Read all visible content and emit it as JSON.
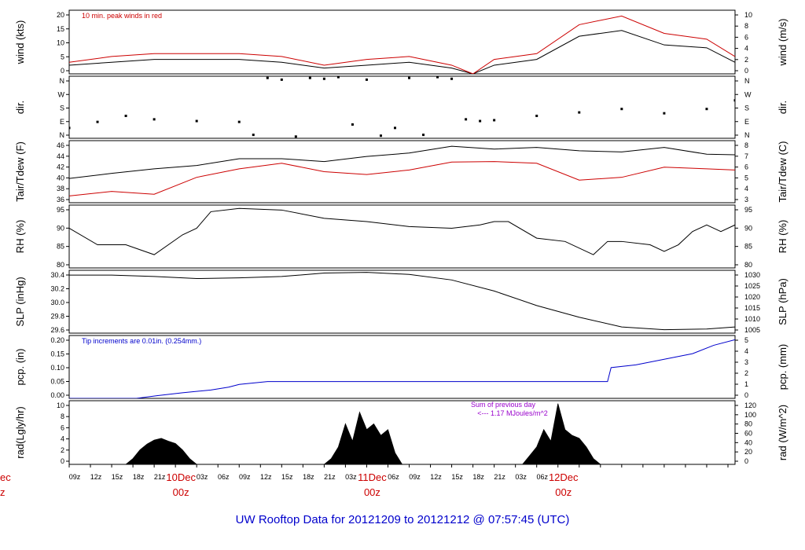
{
  "footer_title": "UW Rooftop Data for 20121209  to  20121212 @ 07:57:45  (UTC)",
  "colors": {
    "black": "#000000",
    "red": "#cc0000",
    "blue": "#0000cc",
    "purple": "#9900cc"
  },
  "x_axis": {
    "hour_labels": [
      "09z",
      "12z",
      "15z",
      "18z",
      "21z",
      "03z",
      "06z",
      "09z",
      "12z",
      "15z",
      "18z",
      "21z",
      "03z",
      "06z",
      "09z",
      "12z",
      "15z",
      "18z",
      "21z",
      "03z",
      "06z"
    ],
    "day_labels": [
      {
        "day": "10Dec",
        "hour": "00z"
      },
      {
        "day": "11Dec",
        "hour": "00z"
      },
      {
        "day": "12Dec",
        "hour": "00z"
      }
    ],
    "cut_off_left": {
      "day": "ec",
      "hour": "z"
    }
  },
  "chart_data": [
    {
      "type": "line",
      "name": "wind",
      "ylabel_left": "wind (kts)",
      "ylabel_right": "wind (m/s)",
      "left_ticks": [
        "0",
        "5",
        "10",
        "15",
        "20"
      ],
      "right_ticks": [
        "0",
        "2",
        "4",
        "6",
        "8",
        "10"
      ],
      "ylim": [
        0,
        22
      ],
      "annotation": "10 min. peak winds in red",
      "series": [
        {
          "name": "mean wind (kts)",
          "color": "#000000",
          "x": [
            0,
            6,
            12,
            18,
            24,
            30,
            36,
            42,
            48,
            54,
            57,
            60,
            66,
            72,
            78,
            84,
            90,
            94
          ],
          "y": [
            3,
            4,
            5,
            5,
            5,
            4,
            2,
            3,
            4,
            2,
            0,
            3,
            5,
            13,
            15,
            10,
            9,
            4
          ]
        },
        {
          "name": "10 min. peak winds",
          "color": "#cc0000",
          "x": [
            0,
            6,
            12,
            18,
            24,
            30,
            36,
            42,
            48,
            54,
            57,
            60,
            66,
            72,
            78,
            84,
            90,
            94
          ],
          "y": [
            4,
            6,
            7,
            7,
            7,
            6,
            3,
            5,
            6,
            3,
            0,
            5,
            7,
            17,
            20,
            14,
            12,
            6
          ]
        }
      ]
    },
    {
      "type": "scatter",
      "name": "dir",
      "ylabel_left": "dir.",
      "ylabel_right": "dir.",
      "left_ticks": [
        "N",
        "E",
        "S",
        "W",
        "N"
      ],
      "right_ticks": [
        "N",
        "E",
        "S",
        "W",
        "N"
      ],
      "ylim": [
        0,
        360
      ],
      "series": [
        {
          "name": "wind direction (deg)",
          "color": "#000000",
          "x": [
            0,
            4,
            8,
            12,
            18,
            24,
            26,
            28,
            30,
            32,
            34,
            36,
            38,
            40,
            42,
            44,
            46,
            48,
            50,
            52,
            54,
            56,
            58,
            60,
            66,
            72,
            78,
            84,
            90,
            94
          ],
          "y": [
            60,
            95,
            130,
            110,
            100,
            95,
            20,
            350,
            340,
            10,
            350,
            345,
            355,
            80,
            340,
            15,
            60,
            350,
            20,
            355,
            345,
            110,
            100,
            105,
            130,
            150,
            170,
            145,
            170,
            220
          ]
        }
      ]
    },
    {
      "type": "line",
      "name": "temperature",
      "ylabel_left": "Tair/Tdew (F)",
      "ylabel_right": "Tair/Tdew (C)",
      "left_ticks": [
        "36",
        "38",
        "40",
        "42",
        "44",
        "46"
      ],
      "right_ticks": [
        "3",
        "4",
        "5",
        "6",
        "7",
        "8"
      ],
      "ylim": [
        36,
        47
      ],
      "series": [
        {
          "name": "Tair (F)",
          "color": "#000000",
          "x": [
            0,
            6,
            12,
            18,
            24,
            30,
            36,
            42,
            48,
            54,
            60,
            66,
            72,
            78,
            84,
            90,
            94
          ],
          "y": [
            40.3,
            41.2,
            42,
            42.6,
            43.8,
            43.8,
            43.3,
            44.2,
            44.8,
            46,
            45.5,
            45.8,
            45.2,
            45,
            45.8,
            44.6,
            44.5
          ]
        },
        {
          "name": "Tdew (F)",
          "color": "#cc0000",
          "x": [
            0,
            6,
            12,
            18,
            24,
            30,
            36,
            42,
            48,
            54,
            60,
            66,
            72,
            78,
            84,
            90,
            94
          ],
          "y": [
            37.2,
            38,
            37.5,
            40.5,
            42,
            43,
            41.5,
            41,
            41.8,
            43.2,
            43.3,
            43,
            40,
            40.5,
            42.3,
            42,
            41.8
          ]
        }
      ]
    },
    {
      "type": "line",
      "name": "rh",
      "ylabel_left": "RH (%)",
      "ylabel_right": "RH (%)",
      "left_ticks": [
        "80",
        "85",
        "90",
        "95"
      ],
      "right_ticks": [
        "80",
        "85",
        "90",
        "95"
      ],
      "ylim": [
        78,
        97
      ],
      "series": [
        {
          "name": "RH (%)",
          "color": "#000000",
          "x": [
            0,
            4,
            8,
            12,
            16,
            18,
            20,
            24,
            30,
            36,
            42,
            48,
            54,
            58,
            60,
            62,
            66,
            70,
            74,
            76,
            78,
            82,
            84,
            86,
            88,
            90,
            92,
            94
          ],
          "y": [
            90,
            85,
            85,
            82,
            88,
            90,
            95,
            96,
            95.5,
            93,
            92,
            90.5,
            90,
            91,
            92,
            92,
            87,
            86,
            82,
            86,
            86,
            85,
            83,
            85,
            89,
            91,
            89,
            91
          ]
        }
      ]
    },
    {
      "type": "line",
      "name": "slp",
      "ylabel_left": "SLP (inHg)",
      "ylabel_right": "SLP (hPa)",
      "left_ticks": [
        "29.6",
        "29.8",
        "30.0",
        "30.2",
        "30.4"
      ],
      "right_ticks": [
        "1005",
        "1010",
        "1015",
        "1020",
        "1025",
        "1030"
      ],
      "ylim": [
        29.57,
        30.48
      ],
      "series": [
        {
          "name": "SLP (inHg)",
          "color": "#000000",
          "x": [
            0,
            6,
            12,
            18,
            24,
            30,
            36,
            42,
            48,
            54,
            60,
            66,
            72,
            78,
            84,
            90,
            94
          ],
          "y": [
            30.41,
            30.41,
            30.39,
            30.36,
            30.37,
            30.39,
            30.44,
            30.45,
            30.42,
            30.34,
            30.18,
            29.97,
            29.8,
            29.66,
            29.62,
            29.63,
            29.66
          ]
        }
      ]
    },
    {
      "type": "line",
      "name": "pcp",
      "ylabel_left": "pcp. (in)",
      "ylabel_right": "pcp. (mm)",
      "left_ticks": [
        "0.00",
        "0.05",
        "0.10",
        "0.15",
        "0.20"
      ],
      "right_ticks": [
        "0",
        "1",
        "2",
        "3",
        "4",
        "5"
      ],
      "ylim": [
        0,
        0.225
      ],
      "annotation": "Tip increments are 0.01in. (0.254mm.)",
      "series": [
        {
          "name": "cumulative precipitation (in)",
          "color": "#0000cc",
          "x": [
            0,
            9.5,
            12.5,
            16,
            20,
            22.5,
            24,
            28,
            32,
            36,
            40,
            44,
            48,
            52,
            56,
            60,
            64,
            68,
            72,
            76,
            76.5,
            80,
            84,
            88,
            91,
            94
          ],
          "y": [
            0,
            0,
            0.01,
            0.02,
            0.03,
            0.04,
            0.05,
            0.06,
            0.06,
            0.06,
            0.06,
            0.06,
            0.06,
            0.06,
            0.06,
            0.06,
            0.06,
            0.06,
            0.06,
            0.06,
            0.11,
            0.12,
            0.14,
            0.16,
            0.19,
            0.21
          ]
        }
      ]
    },
    {
      "type": "area",
      "name": "rad",
      "ylabel_left": "rad(Lgly/hr)",
      "ylabel_right": "rad (W/m^2)",
      "left_ticks": [
        "0",
        "2",
        "4",
        "6",
        "8",
        "10"
      ],
      "right_ticks": [
        "0",
        "20",
        "40",
        "60",
        "80",
        "100",
        "120"
      ],
      "ylim": [
        0,
        11
      ],
      "annotation_line1": "Sum of previous day",
      "annotation_line2": "<--- 1.17 MJoules/m^2",
      "series": [
        {
          "name": "solar radiation",
          "color": "#000000",
          "x": [
            8,
            9,
            10,
            11,
            12,
            13,
            14,
            15,
            16,
            17,
            18,
            36,
            37,
            38,
            39,
            40,
            41,
            42,
            43,
            44,
            45,
            46,
            47,
            64,
            65,
            66,
            67,
            68,
            69,
            70,
            71,
            72,
            73,
            74,
            75
          ],
          "y": [
            0,
            1,
            2.5,
            3.5,
            4.2,
            4.5,
            4,
            3.6,
            2.5,
            1,
            0,
            0,
            1,
            3,
            7,
            4,
            9,
            6,
            7,
            5,
            6,
            2,
            0,
            0,
            1.5,
            3,
            6,
            4,
            10.5,
            6,
            5,
            4.5,
            3,
            1,
            0
          ]
        }
      ]
    }
  ]
}
